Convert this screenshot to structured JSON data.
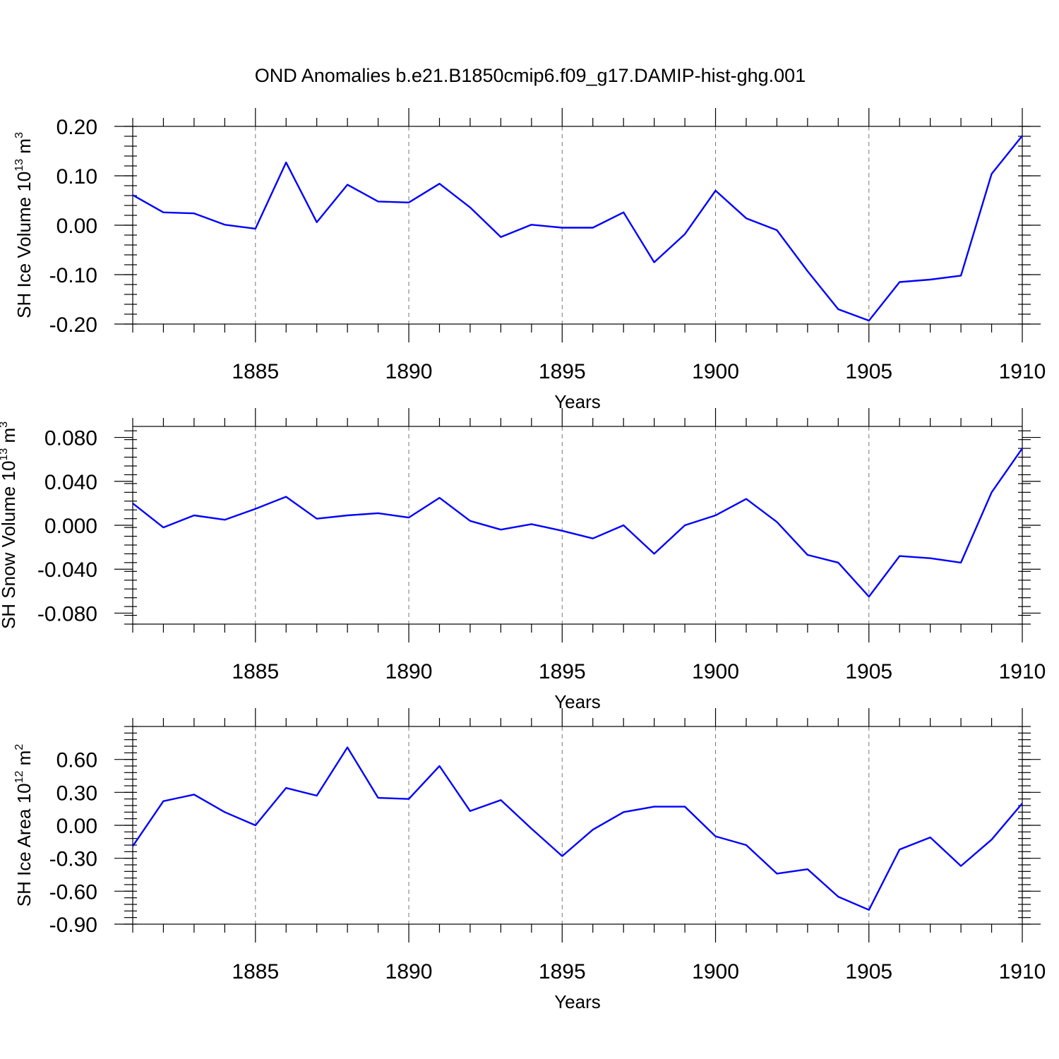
{
  "title": "OND Anomalies b.e21.B1850cmip6.f09_g17.DAMIP-hist-ghg.001",
  "colors": {
    "series": "#0000ff",
    "grid": "#777777",
    "axis": "#000000"
  },
  "chart_data": [
    {
      "type": "line",
      "xlabel": "Years",
      "ylabel": {
        "main": "SH Ice Volume 10",
        "sup": "13",
        "unit": " m",
        "unit_sup": "3"
      },
      "xlim": [
        1881,
        1910
      ],
      "ylim": [
        -0.2,
        0.2
      ],
      "x_ticks": [
        1885,
        1890,
        1895,
        1900,
        1905,
        1910
      ],
      "x_tick_labels": [
        "1885",
        "1890",
        "1895",
        "1900",
        "1905",
        "1910"
      ],
      "y_ticks": [
        0.2,
        0.1,
        0.0,
        -0.1,
        -0.2
      ],
      "y_tick_labels": [
        "0.20",
        "0.10",
        "0.00",
        "-0.10",
        "-0.20"
      ],
      "grid": "vertical dashed at major x ticks",
      "series": [
        {
          "x": [
            1881,
            1882,
            1883,
            1884,
            1885,
            1886,
            1887,
            1888,
            1889,
            1890,
            1891,
            1892,
            1893,
            1894,
            1895,
            1896,
            1897,
            1898,
            1899,
            1900,
            1901,
            1902,
            1903,
            1904,
            1905,
            1906,
            1907,
            1908,
            1909,
            1910
          ],
          "values": [
            0.061,
            0.026,
            0.024,
            0.001,
            -0.007,
            0.127,
            0.006,
            0.082,
            0.048,
            0.046,
            0.084,
            0.036,
            -0.024,
            0.001,
            -0.005,
            -0.005,
            0.026,
            -0.075,
            -0.018,
            0.07,
            0.014,
            -0.01,
            -0.093,
            -0.17,
            -0.193,
            -0.115,
            -0.11,
            -0.102,
            0.104,
            0.181
          ]
        }
      ]
    },
    {
      "type": "line",
      "xlabel": "Years",
      "ylabel": {
        "main": "SH Snow Volume 10",
        "sup": "13",
        "unit": " m",
        "unit_sup": "3"
      },
      "xlim": [
        1881,
        1910
      ],
      "ylim": [
        -0.09,
        0.09
      ],
      "x_ticks": [
        1885,
        1890,
        1895,
        1900,
        1905,
        1910
      ],
      "x_tick_labels": [
        "1885",
        "1890",
        "1895",
        "1900",
        "1905",
        "1910"
      ],
      "y_ticks": [
        0.08,
        0.04,
        0.0,
        -0.04,
        -0.08
      ],
      "y_tick_labels": [
        "0.080",
        "0.040",
        "0.000",
        "-0.040",
        "-0.080"
      ],
      "grid": "vertical dashed at major x ticks",
      "series": [
        {
          "x": [
            1881,
            1882,
            1883,
            1884,
            1885,
            1886,
            1887,
            1888,
            1889,
            1890,
            1891,
            1892,
            1893,
            1894,
            1895,
            1896,
            1897,
            1898,
            1899,
            1900,
            1901,
            1902,
            1903,
            1904,
            1905,
            1906,
            1907,
            1908,
            1909,
            1910
          ],
          "values": [
            0.02,
            -0.002,
            0.009,
            0.005,
            0.015,
            0.026,
            0.006,
            0.009,
            0.011,
            0.007,
            0.025,
            0.004,
            -0.004,
            0.001,
            -0.005,
            -0.012,
            0.0,
            -0.026,
            0.0,
            0.009,
            0.024,
            0.003,
            -0.027,
            -0.034,
            -0.065,
            -0.028,
            -0.03,
            -0.034,
            0.03,
            0.07
          ]
        }
      ]
    },
    {
      "type": "line",
      "xlabel": "Years",
      "ylabel": {
        "main": "SH Ice Area 10",
        "sup": "12",
        "unit": " m",
        "unit_sup": "2"
      },
      "xlim": [
        1881,
        1910
      ],
      "ylim": [
        -0.9,
        0.9
      ],
      "x_ticks": [
        1885,
        1890,
        1895,
        1900,
        1905,
        1910
      ],
      "x_tick_labels": [
        "1885",
        "1890",
        "1895",
        "1900",
        "1905",
        "1910"
      ],
      "y_ticks": [
        0.6,
        0.3,
        0.0,
        -0.3,
        -0.6,
        -0.9
      ],
      "y_tick_labels": [
        "0.60",
        "0.30",
        "0.00",
        "-0.30",
        "-0.60",
        "-0.90"
      ],
      "grid": "vertical dashed at major x ticks",
      "series": [
        {
          "x": [
            1881,
            1882,
            1883,
            1884,
            1885,
            1886,
            1887,
            1888,
            1889,
            1890,
            1891,
            1892,
            1893,
            1894,
            1895,
            1896,
            1897,
            1898,
            1899,
            1900,
            1901,
            1902,
            1903,
            1904,
            1905,
            1906,
            1907,
            1908,
            1909,
            1910
          ],
          "values": [
            -0.19,
            0.22,
            0.28,
            0.12,
            0.0,
            0.34,
            0.27,
            0.71,
            0.25,
            0.24,
            0.54,
            0.13,
            0.23,
            -0.03,
            -0.28,
            -0.04,
            0.12,
            0.17,
            0.17,
            -0.1,
            -0.18,
            -0.44,
            -0.4,
            -0.65,
            -0.77,
            -0.22,
            -0.11,
            -0.37,
            -0.13,
            0.2
          ]
        }
      ]
    }
  ]
}
